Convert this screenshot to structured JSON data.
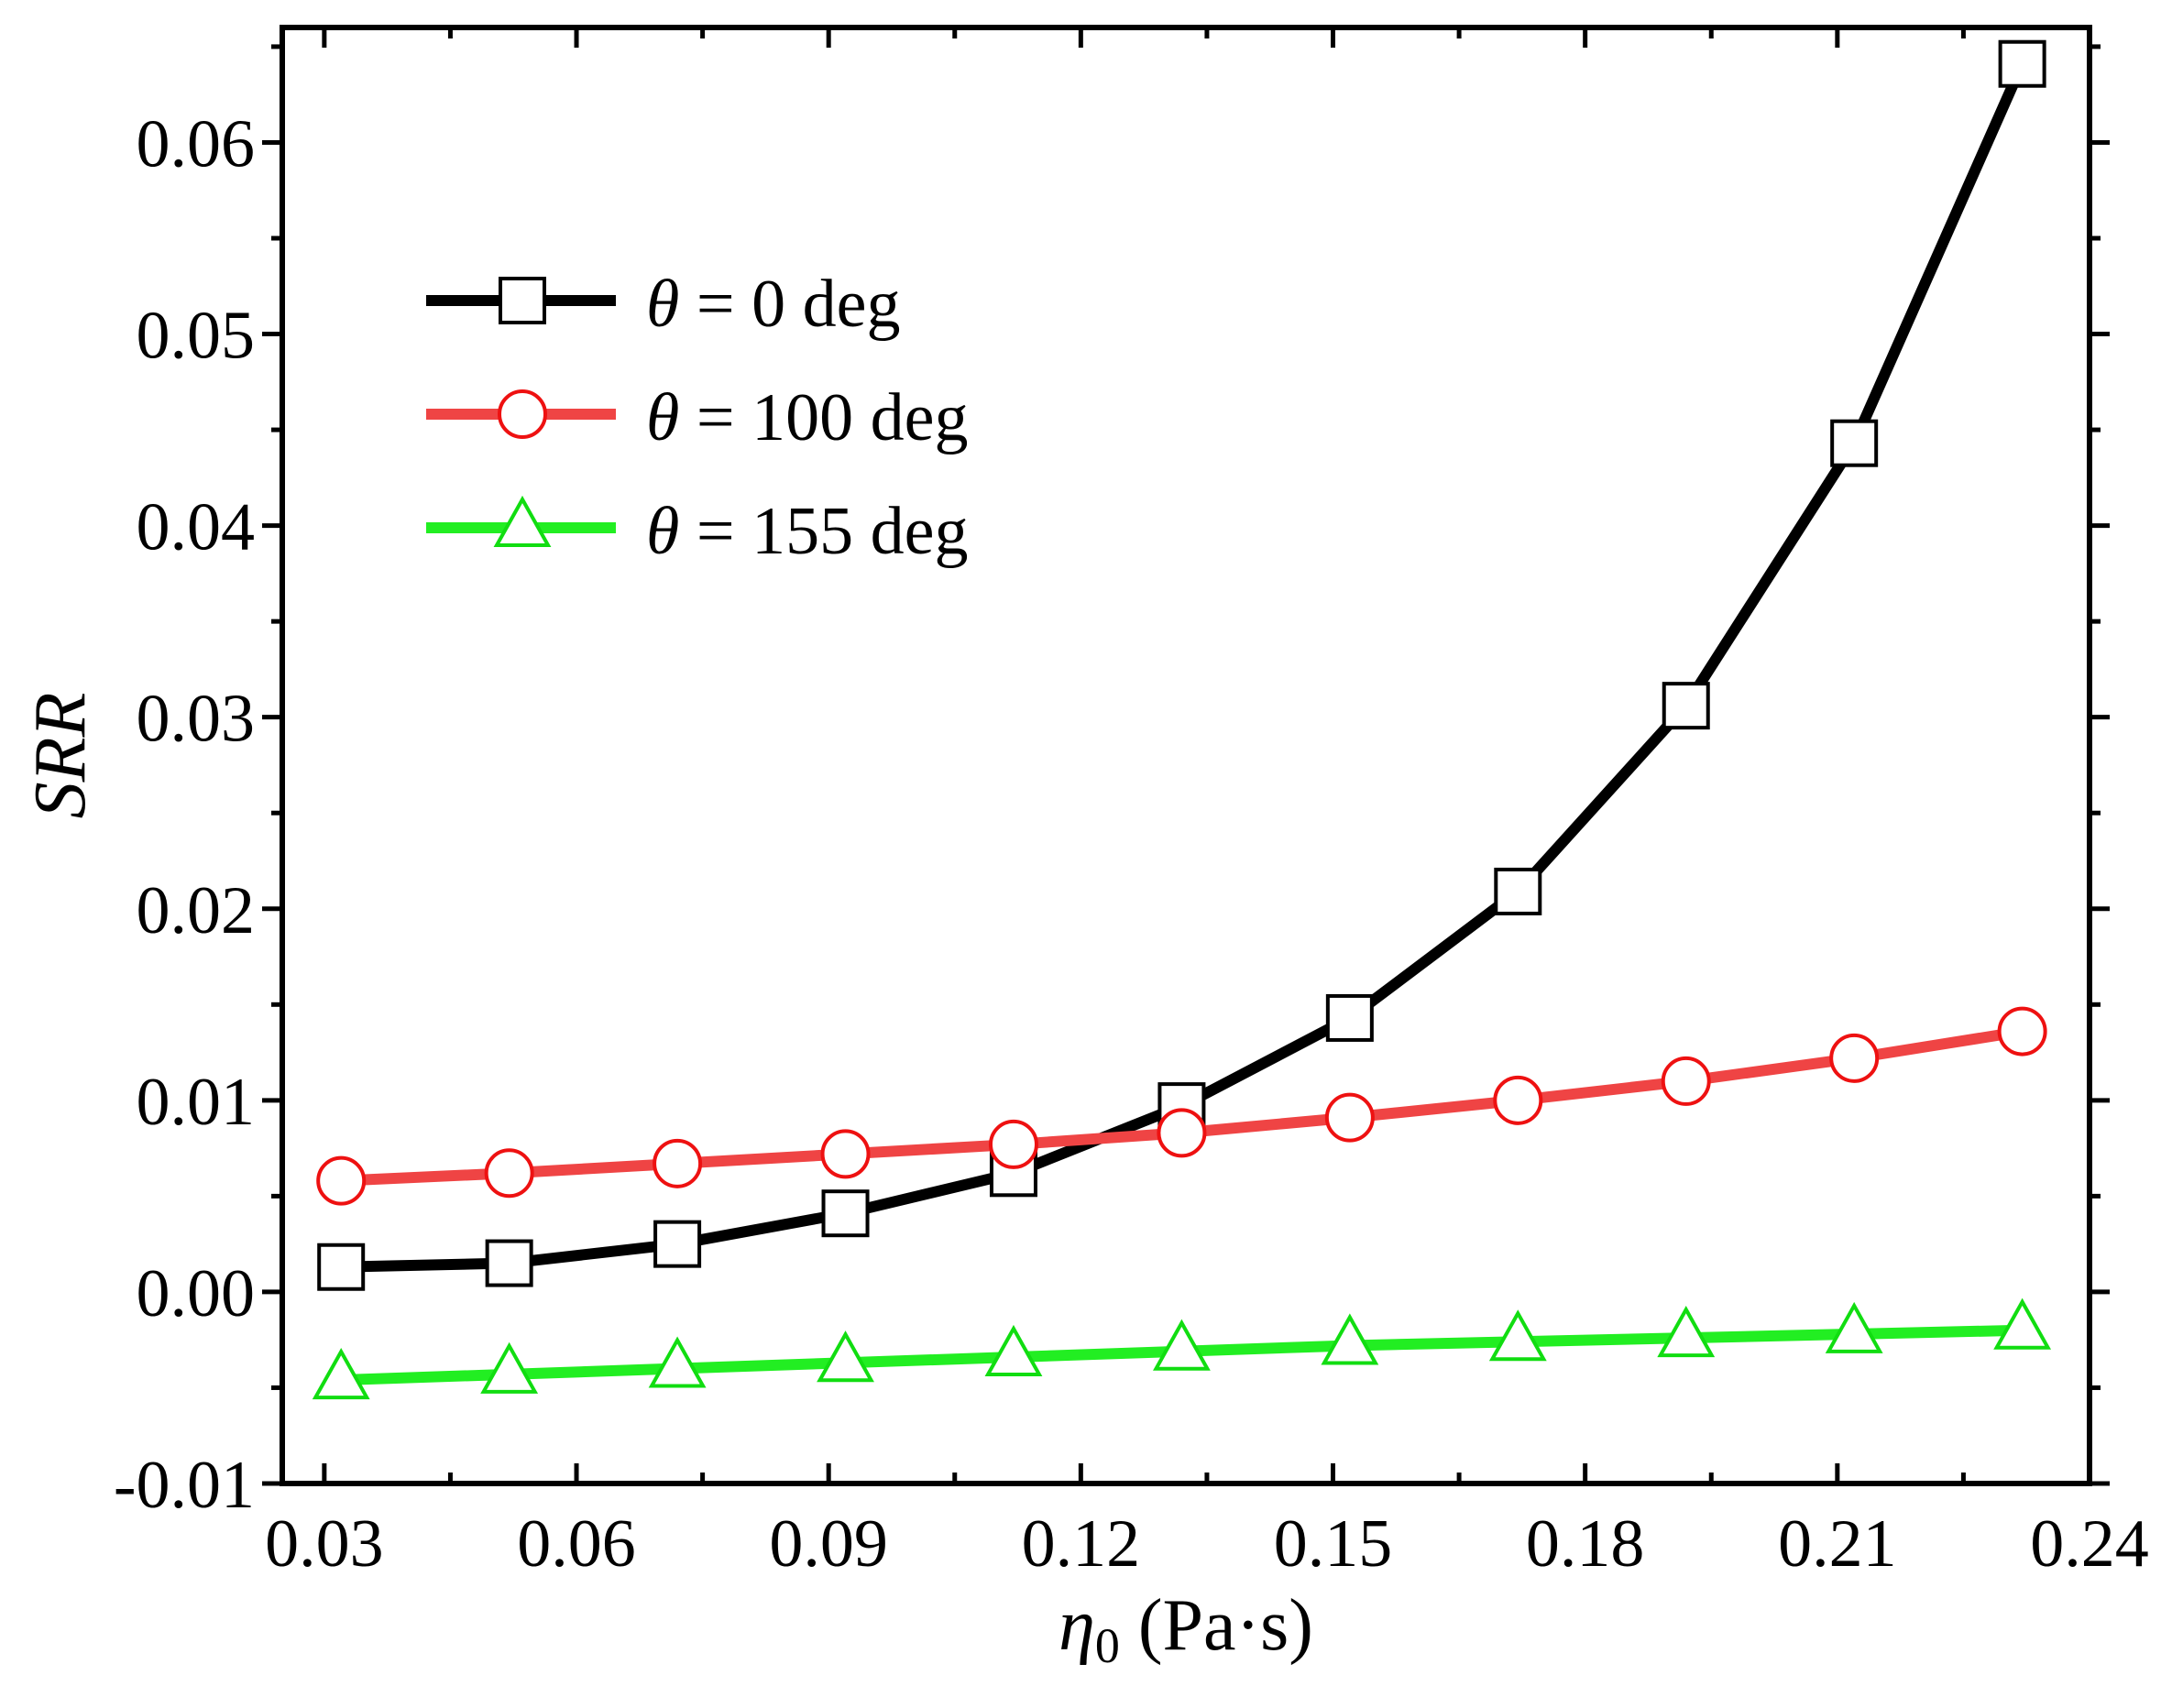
{
  "chart_data": {
    "type": "line",
    "title": "",
    "xlabel": "η0 (Pa·s)",
    "xlabel_parts": {
      "symbol": "η",
      "subscript": "0",
      "unit": " (Pa·s)"
    },
    "ylabel": "SRR",
    "xlim": [
      0.025,
      0.24
    ],
    "ylim": [
      -0.01,
      0.066
    ],
    "x_ticks": [
      0.03,
      0.06,
      0.09,
      0.12,
      0.15,
      0.18,
      0.21,
      0.24
    ],
    "x_tick_labels": [
      "0.03",
      "0.06",
      "0.09",
      "0.12",
      "0.15",
      "0.18",
      "0.21",
      "0.24"
    ],
    "y_ticks": [
      -0.01,
      0.0,
      0.01,
      0.02,
      0.03,
      0.04,
      0.05,
      0.06
    ],
    "y_tick_labels": [
      "-0.01",
      "0.00",
      "0.01",
      "0.02",
      "0.03",
      "0.04",
      "0.05",
      "0.06"
    ],
    "legend_position": "upper-left",
    "x": [
      0.032,
      0.052,
      0.072,
      0.092,
      0.112,
      0.132,
      0.152,
      0.172,
      0.192,
      0.212,
      0.232
    ],
    "series": [
      {
        "name": "θ = 0 deg",
        "symbol": "θ",
        "label_rest": "= 0 deg",
        "color": "#000000",
        "marker": "square",
        "marker_color": "#000000",
        "values": [
          0.0013,
          0.0015,
          0.0025,
          0.0041,
          0.0062,
          0.0097,
          0.0143,
          0.0209,
          0.0306,
          0.0443,
          0.0641
        ]
      },
      {
        "name": "θ = 100 deg",
        "symbol": "θ",
        "label_rest": "= 100 deg",
        "color": "#ef4444",
        "marker": "circle",
        "marker_color": "#ee1111",
        "values": [
          0.0058,
          0.0062,
          0.0067,
          0.0072,
          0.0077,
          0.0083,
          0.0091,
          0.01,
          0.011,
          0.0122,
          0.0136
        ]
      },
      {
        "name": "θ = 155 deg",
        "symbol": "θ",
        "label_rest": "= 155 deg",
        "color": "#22ee22",
        "marker": "triangle",
        "marker_color": "#11dd11",
        "values": [
          -0.0046,
          -0.0043,
          -0.004,
          -0.0037,
          -0.0034,
          -0.0031,
          -0.0028,
          -0.0026,
          -0.0024,
          -0.0022,
          -0.002
        ]
      }
    ]
  }
}
